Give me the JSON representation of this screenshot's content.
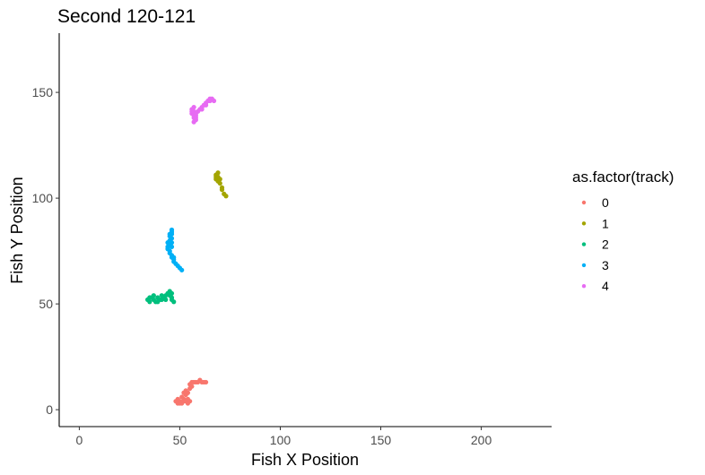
{
  "chart_data": {
    "type": "scatter",
    "title": "Second 120-121",
    "xlabel": "Fish X Position",
    "ylabel": "Fish Y Position",
    "xlim": [
      -10,
      235
    ],
    "ylim": [
      -8,
      178
    ],
    "xticks": [
      0,
      50,
      100,
      150,
      200
    ],
    "yticks": [
      0,
      50,
      100,
      150
    ],
    "grid": false,
    "legend": {
      "title": "as.factor(track)",
      "placement": "right"
    },
    "series": [
      {
        "name": "0",
        "color": "#F8766D",
        "points": [
          [
            49,
            3
          ],
          [
            50,
            4
          ],
          [
            51,
            3
          ],
          [
            52,
            5
          ],
          [
            53,
            4
          ],
          [
            54,
            3
          ],
          [
            55,
            4
          ],
          [
            49,
            5
          ],
          [
            51,
            6
          ],
          [
            53,
            7
          ],
          [
            54,
            8
          ],
          [
            55,
            10
          ],
          [
            53,
            9
          ],
          [
            52,
            8
          ],
          [
            55,
            12
          ],
          [
            56,
            13
          ],
          [
            58,
            13
          ],
          [
            60,
            14
          ],
          [
            62,
            13
          ],
          [
            59,
            13
          ],
          [
            57,
            13
          ],
          [
            61,
            13
          ],
          [
            63,
            13
          ],
          [
            50,
            3
          ],
          [
            52,
            4
          ],
          [
            54,
            5
          ],
          [
            48,
            4
          ],
          [
            56,
            11
          ]
        ]
      },
      {
        "name": "1",
        "color": "#A3A500",
        "points": [
          [
            68,
            110
          ],
          [
            69,
            112
          ],
          [
            68,
            111
          ],
          [
            69,
            110
          ],
          [
            70,
            109
          ],
          [
            69,
            108
          ],
          [
            70,
            107
          ],
          [
            71,
            105
          ],
          [
            71,
            104
          ],
          [
            72,
            102
          ],
          [
            73,
            101
          ],
          [
            68,
            109
          ]
        ]
      },
      {
        "name": "2",
        "color": "#00BF7D",
        "points": [
          [
            34,
            52
          ],
          [
            35,
            51
          ],
          [
            36,
            53
          ],
          [
            37,
            52
          ],
          [
            38,
            51
          ],
          [
            39,
            53
          ],
          [
            40,
            52
          ],
          [
            41,
            54
          ],
          [
            42,
            53
          ],
          [
            43,
            54
          ],
          [
            44,
            55
          ],
          [
            45,
            56
          ],
          [
            46,
            55
          ],
          [
            46,
            53
          ],
          [
            47,
            51
          ],
          [
            46,
            52
          ],
          [
            35,
            53
          ],
          [
            37,
            54
          ],
          [
            39,
            51
          ],
          [
            41,
            52
          ],
          [
            43,
            52
          ],
          [
            45,
            54
          ]
        ]
      },
      {
        "name": "3",
        "color": "#00B0F6",
        "points": [
          [
            46,
            85
          ],
          [
            46,
            84
          ],
          [
            46,
            83
          ],
          [
            45,
            82
          ],
          [
            46,
            81
          ],
          [
            45,
            80
          ],
          [
            46,
            79
          ],
          [
            45,
            78
          ],
          [
            44,
            77
          ],
          [
            44,
            76
          ],
          [
            45,
            75
          ],
          [
            45,
            74
          ],
          [
            46,
            73
          ],
          [
            46,
            72
          ],
          [
            47,
            71
          ],
          [
            47,
            70
          ],
          [
            48,
            69
          ],
          [
            49,
            68
          ],
          [
            50,
            67
          ],
          [
            51,
            66
          ],
          [
            45,
            83
          ],
          [
            44,
            79
          ],
          [
            46,
            77
          ],
          [
            47,
            72
          ]
        ]
      },
      {
        "name": "4",
        "color": "#E76BF3",
        "points": [
          [
            56,
            142
          ],
          [
            57,
            141
          ],
          [
            56,
            140
          ],
          [
            57,
            139
          ],
          [
            57,
            138
          ],
          [
            58,
            137
          ],
          [
            57,
            136
          ],
          [
            58,
            140
          ],
          [
            59,
            141
          ],
          [
            60,
            142
          ],
          [
            61,
            143
          ],
          [
            62,
            144
          ],
          [
            63,
            145
          ],
          [
            64,
            146
          ],
          [
            65,
            147
          ],
          [
            66,
            147
          ],
          [
            67,
            146
          ],
          [
            65,
            146
          ],
          [
            58,
            139
          ],
          [
            57,
            143
          ],
          [
            56,
            141
          ],
          [
            61,
            142
          ],
          [
            63,
            144
          ],
          [
            58,
            138
          ]
        ]
      }
    ]
  }
}
